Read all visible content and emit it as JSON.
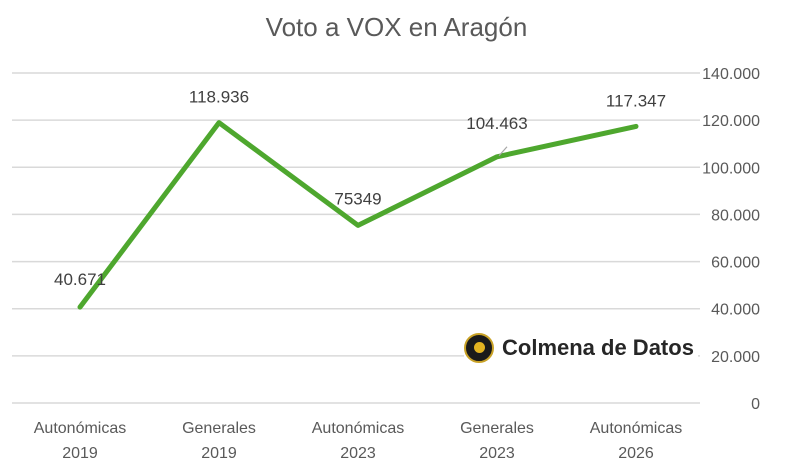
{
  "chart_data": {
    "type": "line",
    "title": "Voto a VOX en Aragón",
    "categories": [
      [
        "Autonómicas",
        "2019"
      ],
      [
        "Generales",
        "2019"
      ],
      [
        "Autonómicas",
        "2023"
      ],
      [
        "Generales",
        "2023"
      ],
      [
        "Autonómicas",
        "2026"
      ]
    ],
    "values": [
      40671,
      118936,
      75349,
      104463,
      117347
    ],
    "data_labels": [
      "40.671",
      "118.936",
      "75349",
      "104.463",
      "117.347"
    ],
    "ylim": [
      0,
      140000
    ],
    "yticks": [
      "0",
      "20.000",
      "40.000",
      "60.000",
      "80.000",
      "100.000",
      "120.000",
      "140.000"
    ],
    "y_axis_side": "right",
    "grid": true,
    "line_color": "#4ea72e"
  },
  "watermark": {
    "text": "Colmena de Datos"
  }
}
